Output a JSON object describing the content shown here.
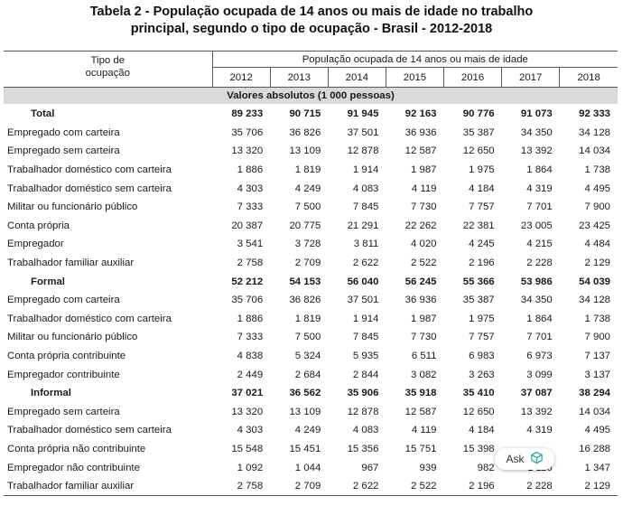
{
  "title": {
    "line1": "Tabela 2 - População ocupada de 14 anos ou mais de idade no trabalho",
    "line2": "principal, segundo o tipo de ocupação - Brasil - 2012-2018"
  },
  "header": {
    "type_line1": "Tipo de",
    "type_line2": "ocupação",
    "group": "População ocupada de 14 anos ou mais de idade",
    "years": [
      "2012",
      "2013",
      "2014",
      "2015",
      "2016",
      "2017",
      "2018"
    ]
  },
  "section": "Valores absolutos (1 000 pessoas)",
  "rows": [
    {
      "label": "Total",
      "bold": true,
      "values": [
        "89 233",
        "90 715",
        "91 945",
        "92 163",
        "90 776",
        "91 073",
        "92 333"
      ]
    },
    {
      "label": "Empregado com carteira",
      "values": [
        "35 706",
        "36 826",
        "37 501",
        "36 936",
        "35 387",
        "34 350",
        "34 128"
      ]
    },
    {
      "label": "Empregado sem carteira",
      "values": [
        "13 320",
        "13 109",
        "12 878",
        "12 587",
        "12 650",
        "13 392",
        "14 034"
      ]
    },
    {
      "label": "Trabalhador doméstico com carteira",
      "values": [
        "1 886",
        "1 819",
        "1 914",
        "1 987",
        "1 975",
        "1 864",
        "1 738"
      ]
    },
    {
      "label": "Trabalhador doméstico sem carteira",
      "values": [
        "4 303",
        "4 249",
        "4 083",
        "4 119",
        "4 184",
        "4 319",
        "4 495"
      ]
    },
    {
      "label": "Militar ou funcionário público",
      "values": [
        "7 333",
        "7 500",
        "7 845",
        "7 730",
        "7 757",
        "7 701",
        "7 900"
      ]
    },
    {
      "label": "Conta própria",
      "values": [
        "20 387",
        "20 775",
        "21 291",
        "22 262",
        "22 381",
        "23 005",
        "23 425"
      ]
    },
    {
      "label": "Empregador",
      "values": [
        "3 541",
        "3 728",
        "3 811",
        "4 020",
        "4 245",
        "4 215",
        "4 484"
      ]
    },
    {
      "label": "Trabalhador familiar auxiliar",
      "values": [
        "2 758",
        "2 709",
        "2 622",
        "2 522",
        "2 196",
        "2 228",
        "2 129"
      ]
    },
    {
      "label": "Formal",
      "bold": true,
      "values": [
        "52 212",
        "54 153",
        "56 040",
        "56 245",
        "55 366",
        "53 986",
        "54 039"
      ]
    },
    {
      "label": "Empregado com carteira",
      "values": [
        "35 706",
        "36 826",
        "37 501",
        "36 936",
        "35 387",
        "34 350",
        "34 128"
      ]
    },
    {
      "label": "Trabalhador doméstico com carteira",
      "values": [
        "1 886",
        "1 819",
        "1 914",
        "1 987",
        "1 975",
        "1 864",
        "1 738"
      ]
    },
    {
      "label": "Militar ou funcionário público",
      "values": [
        "7 333",
        "7 500",
        "7 845",
        "7 730",
        "7 757",
        "7 701",
        "7 900"
      ]
    },
    {
      "label": "Conta própria contribuinte",
      "values": [
        "4 838",
        "5 324",
        "5 935",
        "6 511",
        "6 983",
        "6 973",
        "7 137"
      ]
    },
    {
      "label": "Empregador contribuinte",
      "values": [
        "2 449",
        "2 684",
        "2 844",
        "3 082",
        "3 263",
        "3 099",
        "3 137"
      ]
    },
    {
      "label": "Informal",
      "bold": true,
      "values": [
        "37 021",
        "36 562",
        "35 906",
        "35 918",
        "35 410",
        "37 087",
        "38 294"
      ]
    },
    {
      "label": "Empregado sem carteira",
      "values": [
        "13 320",
        "13 109",
        "12 878",
        "12 587",
        "12 650",
        "13 392",
        "14 034"
      ]
    },
    {
      "label": "Trabalhador doméstico sem carteira",
      "values": [
        "4 303",
        "4 249",
        "4 083",
        "4 119",
        "4 184",
        "4 319",
        "4 495"
      ]
    },
    {
      "label": "Conta própria não contribuinte",
      "values": [
        "15 548",
        "15 451",
        "15 356",
        "15 751",
        "15 398",
        "",
        "16 288"
      ]
    },
    {
      "label": "Empregador não contribuinte",
      "values": [
        "1 092",
        "1 044",
        "967",
        "939",
        "982",
        "1 116",
        "1 347"
      ]
    },
    {
      "label": "Trabalhador familiar auxiliar",
      "values": [
        "2 758",
        "2 709",
        "2 622",
        "2 522",
        "2 196",
        "2 228",
        "2 129"
      ]
    }
  ],
  "ask_button": {
    "label": "Ask",
    "icon": "cube-icon"
  }
}
